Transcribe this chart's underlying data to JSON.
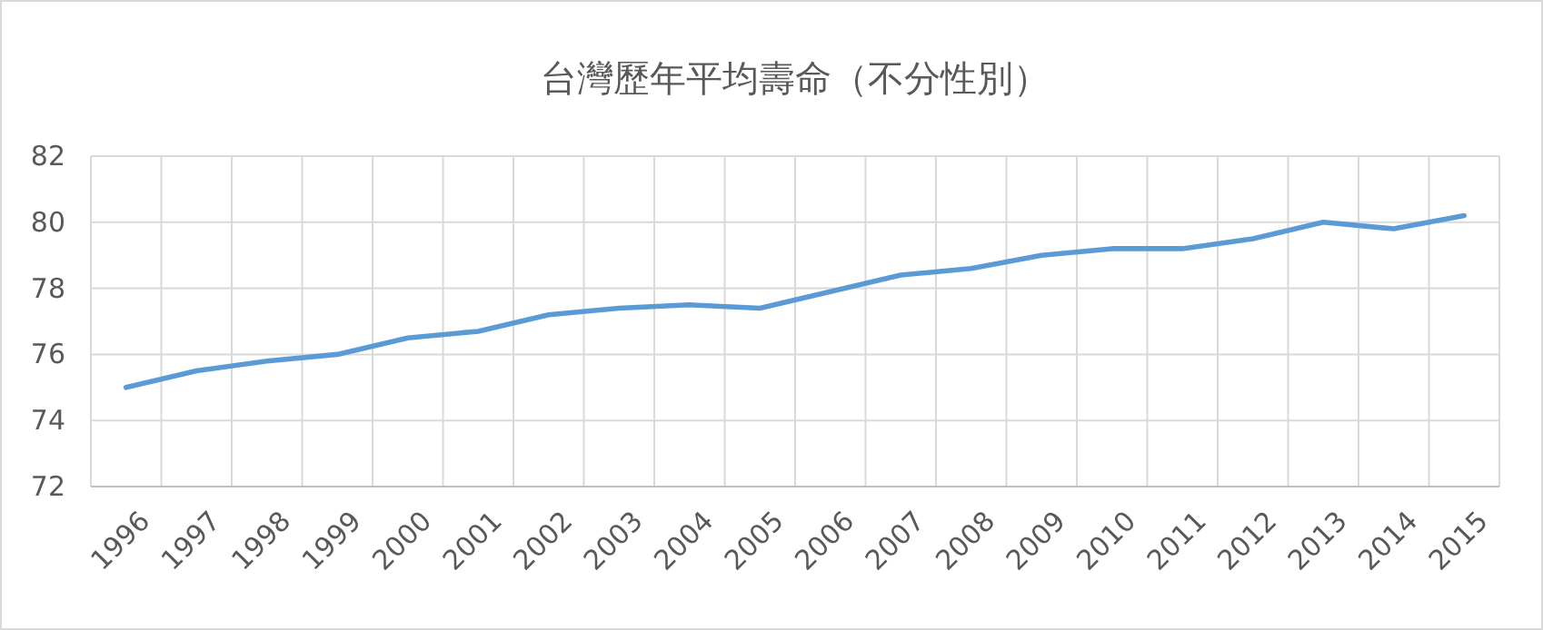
{
  "chart_data": {
    "type": "line",
    "title": "台灣歷年平均壽命（不分性別）",
    "categories": [
      "1996",
      "1997",
      "1998",
      "1999",
      "2000",
      "2001",
      "2002",
      "2003",
      "2004",
      "2005",
      "2006",
      "2007",
      "2008",
      "2009",
      "2010",
      "2011",
      "2012",
      "2013",
      "2014",
      "2015"
    ],
    "series": [
      {
        "color": "#5b9bd5",
        "values": [
          75.0,
          75.5,
          75.8,
          76.0,
          76.5,
          76.7,
          77.2,
          77.4,
          77.5,
          77.4,
          77.9,
          78.4,
          78.6,
          79.0,
          79.2,
          79.2,
          79.5,
          80.0,
          79.8,
          80.2
        ]
      }
    ],
    "ylim": [
      72,
      82
    ],
    "yticks": [
      72,
      74,
      76,
      78,
      80,
      82
    ],
    "grid": true,
    "marker": "none",
    "line_style": "solid"
  }
}
